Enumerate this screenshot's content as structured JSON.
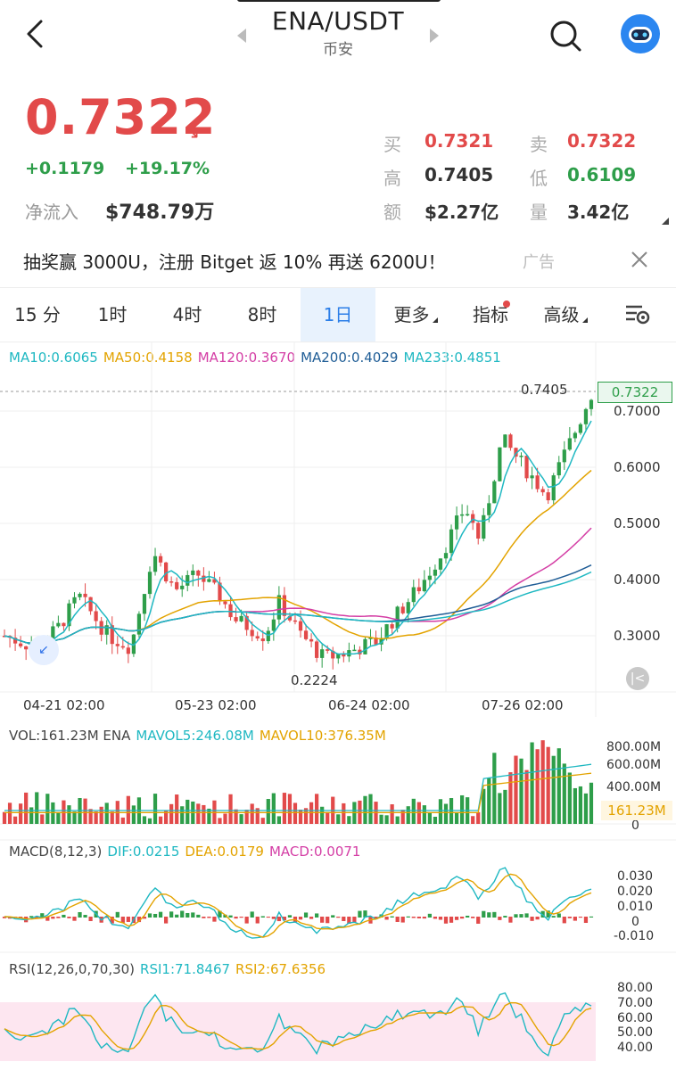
{
  "header": {
    "title": "ENA/USDT",
    "exchange": "币安",
    "back_icon": "chevron-left-icon",
    "search_icon": "search-icon",
    "assistant_icon": "robot-assistant-icon"
  },
  "ticker": {
    "price": "0.7322",
    "trend_arrow": "↘",
    "change_abs": "+0.1179",
    "change_pct": "+19.17%",
    "netflow_label": "净流入",
    "netflow_value": "$748.79万",
    "stats": [
      {
        "label": "买",
        "value": "0.7321",
        "color": "#e24a4a"
      },
      {
        "label": "卖",
        "value": "0.7322",
        "color": "#e24a4a"
      },
      {
        "label": "高",
        "value": "0.7405",
        "color": "#333333"
      },
      {
        "label": "低",
        "value": "0.6109",
        "color": "#2e9e4a"
      },
      {
        "label": "额",
        "value": "$2.27亿",
        "color": "#333333"
      },
      {
        "label": "量",
        "value": "3.42亿",
        "color": "#333333"
      }
    ]
  },
  "ad": {
    "text": "抽奖赢 3000U，注册 Bitget 返 10% 再送 6200U！",
    "tag": "广告",
    "close_icon": "close-icon"
  },
  "tabs": [
    {
      "label": "15 分"
    },
    {
      "label": "1时"
    },
    {
      "label": "4时"
    },
    {
      "label": "8时"
    },
    {
      "label": "1日",
      "active": true
    },
    {
      "label": "更多"
    },
    {
      "label": "指标"
    },
    {
      "label": "高级"
    }
  ],
  "ma_legend": [
    {
      "text": "MA10:0.6065",
      "color": "#1fb8c2"
    },
    {
      "text": "MA50:0.4158",
      "color": "#e3a300"
    },
    {
      "text": "MA120:0.3670",
      "color": "#d43ea5"
    },
    {
      "text": "MA200:0.4029",
      "color": "#1f5d96"
    },
    {
      "text": "MA233:0.4851",
      "color": "#1fb8c2"
    }
  ],
  "main_chart": {
    "price_ticks": [
      "0.7000",
      "0.6000",
      "0.5000",
      "0.4000",
      "0.3000"
    ],
    "current_price_tag": "0.7322",
    "high_marker": "0.7405",
    "low_marker": "0.2224",
    "dates": [
      "04-21 02:00",
      "05-23 02:00",
      "06-24 02:00",
      "07-26 02:00"
    ]
  },
  "volume": {
    "legend": [
      {
        "text": "VOL:161.23M ENA",
        "color": "#444444"
      },
      {
        "text": "MAVOL5:246.08M",
        "color": "#1fb8c2"
      },
      {
        "text": "MAVOL10:376.35M",
        "color": "#e3a300"
      }
    ],
    "ticks": [
      "800.00M",
      "600.00M",
      "400.00M",
      "0"
    ],
    "current_tag": "161.23M"
  },
  "macd": {
    "legend": [
      {
        "text": "MACD(8,12,3)",
        "color": "#444444"
      },
      {
        "text": "DIF:0.0215",
        "color": "#1fb8c2"
      },
      {
        "text": "DEA:0.0179",
        "color": "#e3a300"
      },
      {
        "text": "MACD:0.0071",
        "color": "#d43ea5"
      }
    ],
    "ticks": [
      "0.030",
      "0.020",
      "0.010",
      "0",
      "-0.010"
    ]
  },
  "rsi": {
    "legend": [
      {
        "text": "RSI(12,26,0,70,30)",
        "color": "#444444"
      },
      {
        "text": "RSI1:71.8467",
        "color": "#1fb8c2"
      },
      {
        "text": "RSI2:67.6356",
        "color": "#e3a300"
      }
    ],
    "ticks": [
      "80.00",
      "70.00",
      "60.00",
      "50.00",
      "40.00"
    ]
  }
}
